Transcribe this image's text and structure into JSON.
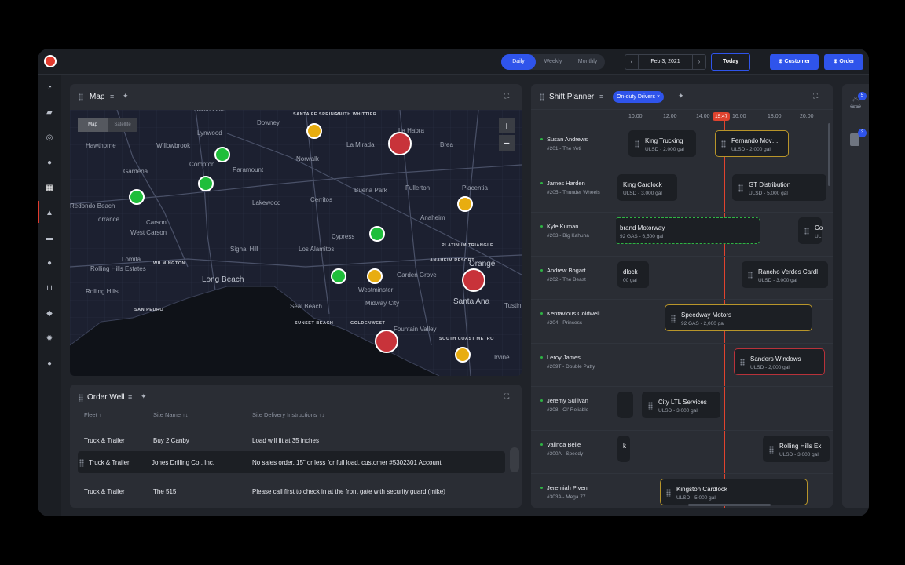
{
  "topbar": {
    "views": [
      "Daily",
      "Weekly",
      "Monthly"
    ],
    "active_view": "Daily",
    "date": "Feb 3, 2021",
    "prev": "‹",
    "next": "›",
    "today_label": "Today",
    "customer_label": "⊕ Customer",
    "order_label": "⊕ Order",
    "accent": "#2f54eb"
  },
  "sidebar": {
    "icons": [
      "dashboard-icon",
      "truck-icon",
      "steering-icon",
      "group-icon",
      "calendar-icon",
      "map-icon",
      "folder-icon",
      "users-icon",
      "cart-icon",
      "shield-icon",
      "gear-icon",
      "person-icon"
    ],
    "active": "calendar-icon"
  },
  "map_panel": {
    "title": "Map",
    "toggle": [
      "Map",
      "Satellite"
    ],
    "zoom_in": "+",
    "zoom_out": "−",
    "labels": [
      "South Gate",
      "Downey",
      "Santa Fe Springs",
      "South Whittier",
      "La Habra",
      "Hawthorne",
      "Lynwood",
      "Willowbrook",
      "La Mirada",
      "Brea",
      "Compton",
      "Norwalk",
      "Gardena",
      "Paramount",
      "Buena Park",
      "Fullerton",
      "Placentia",
      "Redondo Beach",
      "Carson",
      "Lakewood",
      "Cerritos",
      "Anaheim",
      "Torrance",
      "West Carson",
      "Cypress",
      "Lomita",
      "Signal Hill",
      "Los Alamitos",
      "Platinum Triangle",
      "Rolling Hills Estates",
      "Wilmington",
      "Anaheim Resort",
      "Orange",
      "Long Beach",
      "Garden Grove",
      "Westminster",
      "Rolling Hills",
      "Santa Ana",
      "Tustin",
      "Midway City",
      "San Pedro",
      "Seal Beach",
      "Sunset Beach",
      "Goldenwest",
      "Fountain Valley",
      "South Coast Metro",
      "Irvine"
    ],
    "pins": [
      {
        "status": "yellow"
      },
      {
        "status": "red"
      },
      {
        "status": "green"
      },
      {
        "status": "green"
      },
      {
        "status": "green"
      },
      {
        "status": "yellow"
      },
      {
        "status": "green"
      },
      {
        "status": "red"
      },
      {
        "status": "green"
      },
      {
        "status": "yellow"
      },
      {
        "status": "red"
      },
      {
        "status": "yellow"
      }
    ],
    "pin_colors": {
      "green": "#1fbe3a",
      "yellow": "#e8ad10",
      "red": "#c8333a"
    }
  },
  "order_well": {
    "title": "Order Well",
    "columns": [
      "Fleet",
      "Site Name",
      "Site Delivery Instructions"
    ],
    "sort_arrows": [
      "↑",
      "↑↓",
      "↑↓"
    ],
    "rows": [
      {
        "fleet": "Truck & Trailer",
        "site": "Buy 2 Canby",
        "instructions": "Load will fit at 35 inches"
      },
      {
        "fleet": "Truck & Trailer",
        "site": "Jones Drilling Co., Inc.",
        "instructions": "No sales order, 15” or less for full load, customer #5302301 Account"
      },
      {
        "fleet": "Truck & Trailer",
        "site": "The 515",
        "instructions": "Please call first to check in at the front gate with security guard (mike)"
      }
    ]
  },
  "shift_planner": {
    "title": "Shift Planner",
    "filter_chip": "On-duty Drivers ×",
    "ticks": [
      "10:00",
      "12:00",
      "14:00",
      "16:00",
      "18:00",
      "20:00"
    ],
    "now_label": "15:47",
    "drivers": [
      {
        "name": "Susan Andrews",
        "sub": "#201 - The Yeti"
      },
      {
        "name": "James Harden",
        "sub": "#205 - Thunder Wheels"
      },
      {
        "name": "Kyle Kuman",
        "sub": "#203 - Big Kahuna"
      },
      {
        "name": "Andrew Bogart",
        "sub": "#202 - The Beast"
      },
      {
        "name": "Kentavious Coldwell",
        "sub": "#204 - Princess"
      },
      {
        "name": "Leroy James",
        "sub": "#209T - Double Patty"
      },
      {
        "name": "Jeremy Sullivan",
        "sub": "#208 - Ol' Reliable"
      },
      {
        "name": "Valinda Belle",
        "sub": "#300A - Speedy"
      },
      {
        "name": "Jeremiah Piven",
        "sub": "#303A - Mega 77"
      }
    ],
    "cards": [
      {
        "row": 0,
        "title": "King Trucking",
        "sub": "ULSD - 2,000 gal",
        "style": "plain"
      },
      {
        "row": 0,
        "title": "Fernando Mov…",
        "sub": "ULSD - 2,000 gal",
        "style": "yellow"
      },
      {
        "row": 1,
        "title": "King Cardlock",
        "sub": "ULSD - 3,000 gal",
        "style": "plain"
      },
      {
        "row": 1,
        "title": "GT Distribution",
        "sub": "ULSD - 5,000 gal",
        "style": "plain"
      },
      {
        "row": 2,
        "title": "brand Motorway",
        "sub": "92 GAS - 6,500 gal",
        "style": "green"
      },
      {
        "row": 2,
        "title": "Co",
        "sub": "UL",
        "style": "plain"
      },
      {
        "row": 3,
        "title": "dlock",
        "sub": "00 gal",
        "style": "plain"
      },
      {
        "row": 3,
        "title": "Rancho Verdes Cardl",
        "sub": "ULSD - 3,000 gal",
        "style": "plain"
      },
      {
        "row": 4,
        "title": "Speedway Motors",
        "sub": "92 GAS - 2,000 gal",
        "style": "yellow"
      },
      {
        "row": 5,
        "title": "Sanders Windows",
        "sub": "ULSD - 2,000 gal",
        "style": "red"
      },
      {
        "row": 6,
        "title": "",
        "sub": "",
        "style": "plain"
      },
      {
        "row": 6,
        "title": "City LTL Services",
        "sub": "ULSD - 3,000 gal",
        "style": "plain"
      },
      {
        "row": 7,
        "title": "k",
        "sub": "",
        "style": "plain"
      },
      {
        "row": 7,
        "title": "Rolling Hills Ex",
        "sub": "ULSD - 3,000 gal",
        "style": "plain"
      },
      {
        "row": 8,
        "title": "Kingston Cardlock",
        "sub": "ULSD - 5,000 gal",
        "style": "yellow"
      }
    ]
  },
  "right_rail": {
    "bell_badge": "5",
    "doc_badge": "3"
  }
}
